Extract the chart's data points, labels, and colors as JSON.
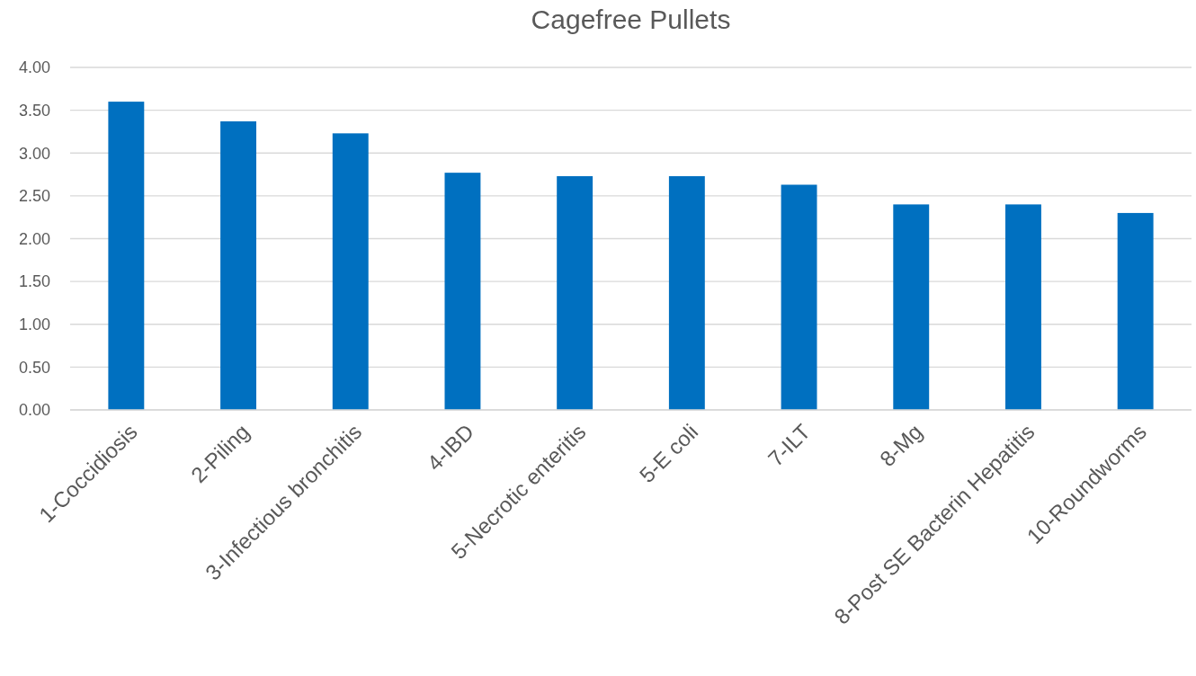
{
  "chart_data": {
    "type": "bar",
    "title": "Cagefree Pullets",
    "categories": [
      "1-Coccidiosis",
      "2-Piling",
      "3-Infectious bronchitis",
      "4-IBD",
      "5-Necrotic enteritis",
      "5-E coli",
      "7-ILT",
      "8-Mg",
      "8-Post SE Bacterin Hepatitis",
      "10-Roundworms"
    ],
    "values": [
      3.6,
      3.37,
      3.23,
      2.77,
      2.73,
      2.73,
      2.63,
      2.4,
      2.4,
      2.3
    ],
    "color": "#0070c0",
    "ylim": [
      0,
      4
    ],
    "yticks": [
      {
        "value": 0,
        "label": "0.00"
      },
      {
        "value": 0.5,
        "label": "0.50"
      },
      {
        "value": 1,
        "label": "1.00"
      },
      {
        "value": 1.5,
        "label": "1.50"
      },
      {
        "value": 2,
        "label": "2.00"
      },
      {
        "value": 2.5,
        "label": "2.50"
      },
      {
        "value": 3,
        "label": "3.00"
      },
      {
        "value": 3.5,
        "label": "3.50"
      },
      {
        "value": 4,
        "label": "4.00"
      }
    ],
    "grid": "y"
  }
}
